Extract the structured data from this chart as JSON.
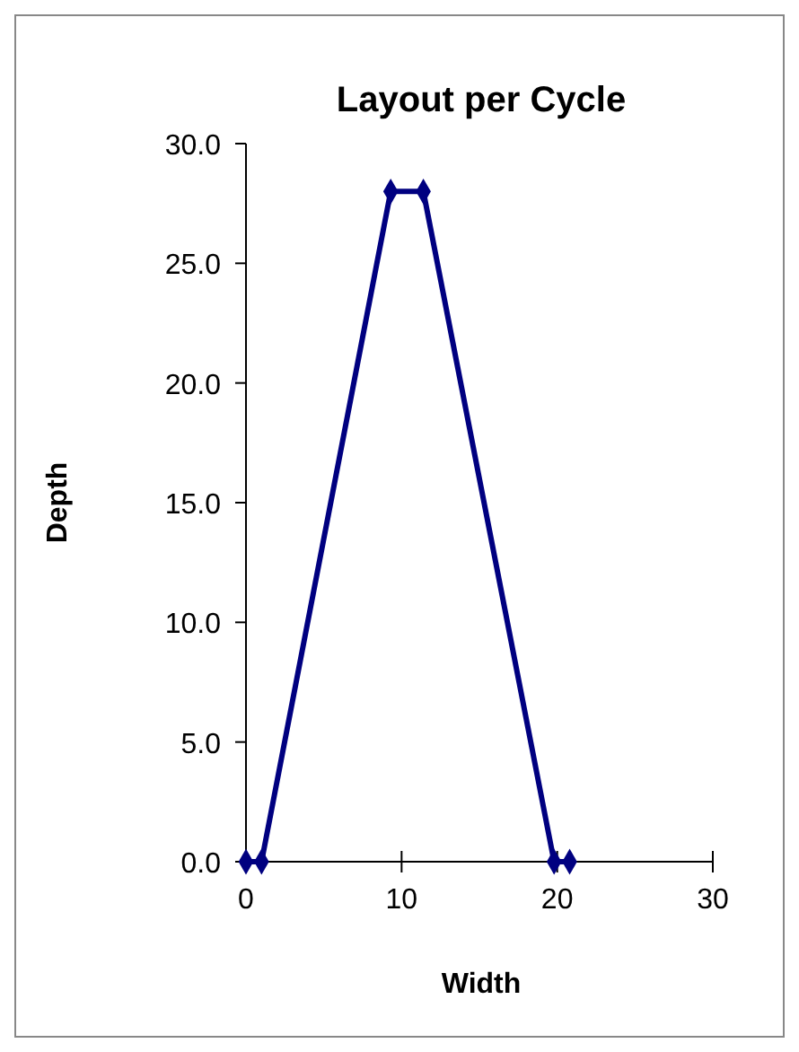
{
  "chart_data": {
    "type": "line",
    "title": "Layout per Cycle",
    "xlabel": "Width",
    "ylabel": "Depth",
    "x": [
      0,
      1,
      9.3,
      11.4,
      19.8,
      20.8
    ],
    "series": [
      {
        "color": "#000080",
        "values": [
          0,
          0,
          28,
          28,
          0,
          0
        ]
      }
    ],
    "xlim": [
      0,
      30
    ],
    "xticks": [
      0,
      10,
      20,
      30
    ],
    "ylim": [
      0,
      30
    ],
    "yticks": [
      {
        "value": 0,
        "label": "0.0"
      },
      {
        "value": 5,
        "label": "5.0"
      },
      {
        "value": 10,
        "label": "10.0"
      },
      {
        "value": 15,
        "label": "15.0"
      },
      {
        "value": 20,
        "label": "20.0"
      },
      {
        "value": 25,
        "label": "25.0"
      },
      {
        "value": 30,
        "label": "30.0"
      }
    ],
    "marker": "diamond",
    "line_style": "solid",
    "grid": false
  }
}
